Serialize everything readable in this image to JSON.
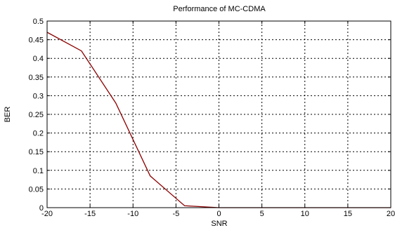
{
  "chart_data": {
    "type": "line",
    "title": "Performance of MC-CDMA",
    "xlabel": "SNR",
    "ylabel": "BER",
    "xlim": [
      -20,
      20
    ],
    "ylim": [
      0,
      0.5
    ],
    "xticks": [
      "-20",
      "-15",
      "-10",
      "-5",
      "0",
      "5",
      "10",
      "15",
      "20"
    ],
    "yticks": [
      "0",
      "0.05",
      "0.1",
      "0.15",
      "0.2",
      "0.25",
      "0.3",
      "0.35",
      "0.4",
      "0.45",
      "0.5"
    ],
    "grid": true,
    "grid_style": "dotted",
    "series": [
      {
        "color": "#8b0000",
        "x": [
          -20,
          -16,
          -12,
          -8,
          -4,
          0,
          4,
          8,
          12,
          16,
          20
        ],
        "y": [
          0.47,
          0.42,
          0.28,
          0.085,
          0.005,
          0.0,
          0.0,
          0.0,
          0.0,
          0.0,
          0.0
        ]
      }
    ]
  }
}
